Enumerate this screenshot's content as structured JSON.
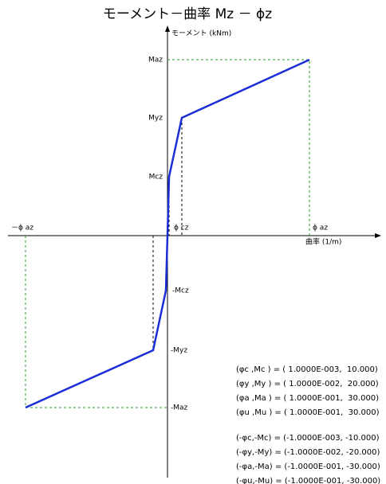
{
  "title": "モーメント－曲率 Mz － ϕz",
  "axes": {
    "y_label": "モーメント (kNm)",
    "x_label": "曲率 (1/m)"
  },
  "point_labels": {
    "maz": "Maz",
    "myz": "Myz",
    "mcz": "Mcz",
    "neg_mcz": "-Mcz",
    "neg_myz": "-Myz",
    "neg_maz": "-Maz",
    "phi_cz": "ϕ cz",
    "phi_az": "ϕ az",
    "neg_phi_az": "－ϕ az"
  },
  "results": {
    "positive": [
      "(φc ,Mc ) = ( 1.0000E-003,  10.000)",
      "(φy ,My ) = ( 1.0000E-002,  20.000)",
      "(φa ,Ma ) = ( 1.0000E-001,  30.000)",
      "(φu ,Mu ) = ( 1.0000E-001,  30.000)"
    ],
    "negative": [
      "(-φc,-Mc) = (-1.0000E-003, -10.000)",
      "(-φy,-My) = (-1.0000E-002, -20.000)",
      "(-φa,-Ma) = (-1.0000E-001, -30.000)",
      "(-φu,-Mu) = (-1.0000E-001, -30.000)"
    ]
  }
}
